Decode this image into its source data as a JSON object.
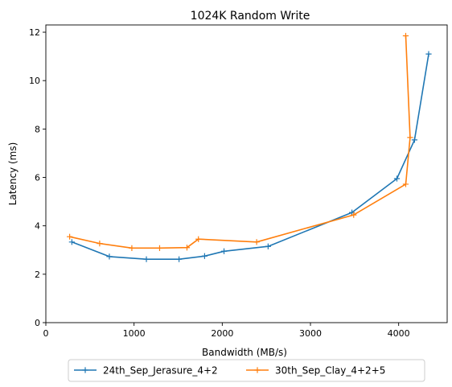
{
  "chart_data": {
    "type": "line",
    "title": "1024K  Random Write",
    "xlabel": "Bandwidth (MB/s)",
    "ylabel": "Latency (ms)",
    "xlim": [
      0,
      4550
    ],
    "ylim": [
      0,
      12.3
    ],
    "xticks": [
      0,
      1000,
      2000,
      3000,
      4000
    ],
    "yticks": [
      0,
      2,
      4,
      6,
      8,
      10,
      12
    ],
    "grid": false,
    "legend_position": "bottom-center",
    "marker": "plus",
    "series": [
      {
        "name": "24th_Sep_Jerasure_4+2",
        "color": "#1f77b4",
        "x": [
          295,
          720,
          1140,
          1510,
          1800,
          2020,
          2520,
          3470,
          3980,
          4180,
          4340
        ],
        "y": [
          3.33,
          2.73,
          2.62,
          2.62,
          2.75,
          2.95,
          3.15,
          4.55,
          5.95,
          7.55,
          11.1
        ]
      },
      {
        "name": "30th_Sep_Clay_4+2+5",
        "color": "#ff7f0e",
        "x": [
          270,
          610,
          975,
          1290,
          1600,
          1730,
          2390,
          3490,
          4080,
          4130,
          4080
        ],
        "y": [
          3.55,
          3.27,
          3.08,
          3.08,
          3.1,
          3.45,
          3.33,
          4.45,
          5.72,
          7.65,
          11.85
        ]
      }
    ]
  }
}
